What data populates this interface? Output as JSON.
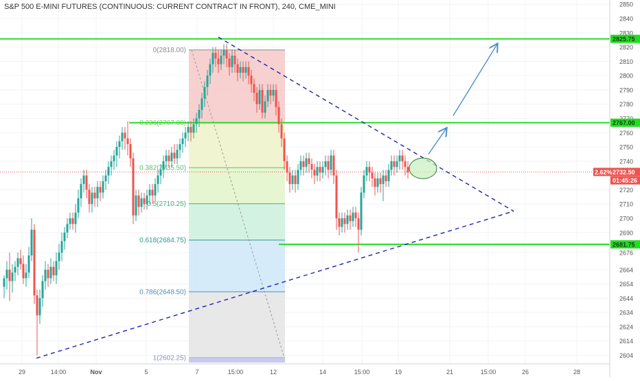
{
  "chart_data": {
    "type": "candlestick",
    "title": "S&P 500 E-MINI FUTURES (CONTINUOUS: CURRENT CONTRACT IN FRONT), 240, CME_MINI",
    "x_ticks": [
      "29",
      "14:00",
      "Nov",
      "5",
      "7",
      "15:00",
      "12",
      "14",
      "15:00",
      "19",
      "21",
      "15:00",
      "26",
      "28"
    ],
    "y_ticks": [
      2850,
      2840,
      2830,
      2820,
      2810,
      2800,
      2790,
      2780,
      2770,
      2760,
      2750,
      2740,
      2720,
      2710,
      2700,
      2690,
      2676,
      2664,
      2654,
      2644,
      2634,
      2624,
      2614,
      2604
    ],
    "y_range": [
      2598,
      2853
    ],
    "grid": true,
    "price_labels": [
      {
        "text": "2825.75",
        "value": 2825.75,
        "kind": "green"
      },
      {
        "text": "2767.00",
        "value": 2767.0,
        "kind": "green"
      },
      {
        "text": "2732.50",
        "value": 2732.5,
        "kind": "red",
        "prefix": "2.62%"
      },
      {
        "text": "01:45:26",
        "value": 2726.6,
        "kind": "red"
      },
      {
        "text": "2681.75",
        "value": 2681.75,
        "kind": "green"
      }
    ],
    "current_price": 2732.5,
    "horizontal_lines": [
      2825.75,
      2767.0,
      2681.75
    ],
    "fibonacci": {
      "levels": [
        {
          "ratio": "0",
          "price": 2818.0,
          "label": "0(2818.00)"
        },
        {
          "ratio": "0.236",
          "price": 2767.0,
          "label": "0.236(2767.00)"
        },
        {
          "ratio": "0.382",
          "price": 2735.5,
          "label": "0.382(2735.50)"
        },
        {
          "ratio": "0.5",
          "price": 2710.25,
          "label": "0.5(2710.25)"
        },
        {
          "ratio": "0.618",
          "price": 2684.75,
          "label": "0.618(2684.75)"
        },
        {
          "ratio": "0.786",
          "price": 2648.5,
          "label": "0.786(2648.50)"
        },
        {
          "ratio": "1",
          "price": 2602.25,
          "label": "1(2602.25)"
        }
      ]
    },
    "trend_lines": [
      {
        "name": "upper",
        "from": [
          318,
          2827
        ],
        "to": [
          748,
          2705
        ]
      },
      {
        "name": "lower",
        "from": [
          53,
          2602
        ],
        "to": [
          748,
          2705
        ]
      }
    ],
    "candles": [
      [
        6,
        2652,
        2658,
        2644,
        2660
      ],
      [
        10,
        2658,
        2664,
        2650,
        2670
      ],
      [
        14,
        2664,
        2656,
        2642,
        2676
      ],
      [
        18,
        2656,
        2662,
        2648,
        2668
      ],
      [
        22,
        2662,
        2666,
        2656,
        2670
      ],
      [
        26,
        2666,
        2672,
        2660,
        2676
      ],
      [
        30,
        2672,
        2668,
        2664,
        2678
      ],
      [
        34,
        2668,
        2658,
        2654,
        2674
      ],
      [
        38,
        2658,
        2662,
        2652,
        2668
      ],
      [
        42,
        2662,
        2674,
        2658,
        2680
      ],
      [
        46,
        2674,
        2692,
        2670,
        2700
      ],
      [
        50,
        2692,
        2646,
        2640,
        2696
      ],
      [
        54,
        2646,
        2632,
        2604,
        2650
      ],
      [
        58,
        2632,
        2644,
        2626,
        2650
      ],
      [
        62,
        2644,
        2656,
        2638,
        2660
      ],
      [
        66,
        2656,
        2664,
        2650,
        2670
      ],
      [
        70,
        2664,
        2658,
        2652,
        2668
      ],
      [
        74,
        2658,
        2666,
        2654,
        2672
      ],
      [
        78,
        2666,
        2660,
        2656,
        2670
      ],
      [
        82,
        2660,
        2670,
        2654,
        2676
      ],
      [
        86,
        2670,
        2676,
        2664,
        2682
      ],
      [
        90,
        2676,
        2684,
        2670,
        2690
      ],
      [
        94,
        2684,
        2690,
        2678,
        2694
      ],
      [
        98,
        2690,
        2696,
        2686,
        2700
      ],
      [
        102,
        2696,
        2700,
        2692,
        2704
      ],
      [
        106,
        2700,
        2696,
        2692,
        2704
      ],
      [
        110,
        2696,
        2704,
        2690,
        2710
      ],
      [
        114,
        2704,
        2714,
        2700,
        2720
      ],
      [
        118,
        2714,
        2724,
        2708,
        2728
      ],
      [
        122,
        2724,
        2730,
        2718,
        2734
      ],
      [
        126,
        2730,
        2720,
        2714,
        2734
      ],
      [
        130,
        2720,
        2710,
        2704,
        2724
      ],
      [
        134,
        2710,
        2718,
        2704,
        2722
      ],
      [
        138,
        2718,
        2714,
        2708,
        2722
      ],
      [
        142,
        2714,
        2722,
        2708,
        2726
      ],
      [
        146,
        2722,
        2718,
        2712,
        2726
      ],
      [
        150,
        2718,
        2726,
        2714,
        2730
      ],
      [
        154,
        2726,
        2730,
        2720,
        2734
      ],
      [
        158,
        2730,
        2736,
        2724,
        2740
      ],
      [
        162,
        2736,
        2740,
        2730,
        2744
      ],
      [
        166,
        2740,
        2744,
        2734,
        2748
      ],
      [
        170,
        2744,
        2750,
        2736,
        2754
      ],
      [
        174,
        2750,
        2754,
        2742,
        2758
      ],
      [
        178,
        2754,
        2760,
        2748,
        2764
      ],
      [
        182,
        2760,
        2756,
        2748,
        2764
      ],
      [
        186,
        2756,
        2752,
        2744,
        2768
      ],
      [
        190,
        2752,
        2742,
        2736,
        2756
      ],
      [
        194,
        2742,
        2702,
        2696,
        2746
      ],
      [
        198,
        2702,
        2716,
        2698,
        2720
      ],
      [
        202,
        2716,
        2708,
        2702,
        2720
      ],
      [
        206,
        2708,
        2714,
        2704,
        2718
      ],
      [
        210,
        2714,
        2710,
        2706,
        2718
      ],
      [
        214,
        2710,
        2716,
        2706,
        2720
      ],
      [
        218,
        2716,
        2720,
        2710,
        2724
      ],
      [
        222,
        2720,
        2716,
        2710,
        2724
      ],
      [
        226,
        2716,
        2724,
        2712,
        2728
      ],
      [
        230,
        2724,
        2730,
        2718,
        2734
      ],
      [
        234,
        2730,
        2734,
        2724,
        2738
      ],
      [
        238,
        2734,
        2740,
        2728,
        2744
      ],
      [
        242,
        2740,
        2744,
        2734,
        2748
      ],
      [
        246,
        2744,
        2740,
        2736,
        2748
      ],
      [
        250,
        2740,
        2746,
        2736,
        2750
      ],
      [
        254,
        2746,
        2742,
        2738,
        2752
      ],
      [
        258,
        2742,
        2748,
        2738,
        2752
      ],
      [
        262,
        2748,
        2752,
        2742,
        2756
      ],
      [
        266,
        2752,
        2756,
        2746,
        2760
      ],
      [
        270,
        2756,
        2760,
        2750,
        2764
      ],
      [
        274,
        2760,
        2764,
        2754,
        2768
      ],
      [
        278,
        2764,
        2760,
        2754,
        2768
      ],
      [
        282,
        2760,
        2766,
        2756,
        2770
      ],
      [
        286,
        2766,
        2770,
        2760,
        2774
      ],
      [
        290,
        2770,
        2776,
        2764,
        2780
      ],
      [
        294,
        2776,
        2784,
        2770,
        2788
      ],
      [
        298,
        2784,
        2792,
        2778,
        2796
      ],
      [
        302,
        2792,
        2800,
        2786,
        2804
      ],
      [
        306,
        2800,
        2808,
        2794,
        2812
      ],
      [
        310,
        2808,
        2816,
        2802,
        2820
      ],
      [
        314,
        2816,
        2812,
        2806,
        2820
      ],
      [
        318,
        2812,
        2808,
        2802,
        2818
      ],
      [
        322,
        2808,
        2814,
        2804,
        2818
      ],
      [
        326,
        2814,
        2818,
        2808,
        2822
      ],
      [
        330,
        2818,
        2812,
        2806,
        2822
      ],
      [
        334,
        2812,
        2806,
        2800,
        2816
      ],
      [
        338,
        2806,
        2814,
        2802,
        2818
      ],
      [
        342,
        2814,
        2808,
        2802,
        2818
      ],
      [
        346,
        2808,
        2802,
        2796,
        2812
      ],
      [
        350,
        2802,
        2806,
        2798,
        2810
      ],
      [
        354,
        2806,
        2802,
        2796,
        2810
      ],
      [
        358,
        2802,
        2806,
        2798,
        2810
      ],
      [
        362,
        2806,
        2800,
        2794,
        2810
      ],
      [
        366,
        2800,
        2794,
        2788,
        2804
      ],
      [
        370,
        2794,
        2788,
        2782,
        2798
      ],
      [
        374,
        2788,
        2780,
        2774,
        2792
      ],
      [
        378,
        2780,
        2790,
        2776,
        2794
      ],
      [
        382,
        2790,
        2774,
        2770,
        2794
      ],
      [
        386,
        2774,
        2782,
        2770,
        2786
      ],
      [
        390,
        2782,
        2790,
        2778,
        2794
      ],
      [
        394,
        2790,
        2786,
        2780,
        2794
      ],
      [
        398,
        2786,
        2790,
        2782,
        2794
      ],
      [
        402,
        2790,
        2778,
        2772,
        2794
      ],
      [
        406,
        2778,
        2766,
        2760,
        2782
      ],
      [
        410,
        2766,
        2756,
        2750,
        2770
      ],
      [
        414,
        2756,
        2740,
        2734,
        2760
      ],
      [
        418,
        2740,
        2732,
        2726,
        2744
      ],
      [
        422,
        2732,
        2724,
        2718,
        2736
      ],
      [
        426,
        2724,
        2730,
        2720,
        2734
      ],
      [
        430,
        2730,
        2724,
        2718,
        2734
      ],
      [
        434,
        2724,
        2734,
        2720,
        2738
      ],
      [
        438,
        2734,
        2740,
        2730,
        2744
      ],
      [
        442,
        2740,
        2736,
        2730,
        2744
      ],
      [
        446,
        2736,
        2742,
        2732,
        2746
      ],
      [
        450,
        2742,
        2738,
        2732,
        2746
      ],
      [
        454,
        2738,
        2734,
        2728,
        2742
      ],
      [
        458,
        2734,
        2730,
        2724,
        2738
      ],
      [
        462,
        2730,
        2736,
        2726,
        2740
      ],
      [
        466,
        2736,
        2732,
        2726,
        2740
      ],
      [
        470,
        2732,
        2736,
        2728,
        2740
      ],
      [
        474,
        2736,
        2740,
        2730,
        2744
      ],
      [
        478,
        2740,
        2734,
        2728,
        2744
      ],
      [
        482,
        2734,
        2744,
        2730,
        2748
      ],
      [
        486,
        2744,
        2730,
        2724,
        2748
      ],
      [
        490,
        2730,
        2700,
        2692,
        2734
      ],
      [
        494,
        2700,
        2694,
        2688,
        2704
      ],
      [
        498,
        2694,
        2700,
        2690,
        2704
      ],
      [
        502,
        2700,
        2696,
        2690,
        2704
      ],
      [
        506,
        2696,
        2702,
        2692,
        2706
      ],
      [
        510,
        2702,
        2698,
        2692,
        2706
      ],
      [
        514,
        2698,
        2704,
        2694,
        2708
      ],
      [
        518,
        2704,
        2700,
        2694,
        2708
      ],
      [
        522,
        2700,
        2692,
        2676,
        2704
      ],
      [
        526,
        2692,
        2718,
        2688,
        2722
      ],
      [
        530,
        2718,
        2730,
        2714,
        2734
      ],
      [
        534,
        2730,
        2736,
        2726,
        2740
      ],
      [
        538,
        2736,
        2732,
        2726,
        2740
      ],
      [
        542,
        2732,
        2728,
        2722,
        2736
      ],
      [
        546,
        2728,
        2722,
        2716,
        2732
      ],
      [
        550,
        2722,
        2728,
        2718,
        2732
      ],
      [
        554,
        2728,
        2724,
        2718,
        2732
      ],
      [
        558,
        2724,
        2730,
        2712,
        2734
      ],
      [
        562,
        2730,
        2726,
        2722,
        2734
      ],
      [
        566,
        2726,
        2734,
        2722,
        2738
      ],
      [
        570,
        2734,
        2740,
        2730,
        2744
      ],
      [
        574,
        2740,
        2736,
        2730,
        2744
      ],
      [
        578,
        2736,
        2740,
        2732,
        2744
      ],
      [
        582,
        2740,
        2744,
        2734,
        2748
      ],
      [
        586,
        2744,
        2740,
        2734,
        2748
      ],
      [
        590,
        2740,
        2736,
        2730,
        2744
      ],
      [
        594,
        2736,
        2732,
        2728,
        2740
      ]
    ],
    "annotations": [
      {
        "type": "ellipse",
        "center": [
          616,
          2735
        ]
      },
      {
        "type": "arrow",
        "from": [
          624,
          2745
        ],
        "to": [
          650,
          2763
        ]
      },
      {
        "type": "arrow",
        "from": [
          660,
          2772
        ],
        "to": [
          724,
          2822
        ]
      }
    ]
  },
  "colors": {
    "up": "#26a69a",
    "down": "#ef5350",
    "green_line": "#22dd22",
    "trend": "#1e22aa",
    "arrow": "#4d8fc4",
    "fib_zones": [
      "#f6c8c8",
      "#eef2c8",
      "#e2f4c8",
      "#cdf0dc",
      "#cfe8f8",
      "#e4e4e4"
    ]
  }
}
